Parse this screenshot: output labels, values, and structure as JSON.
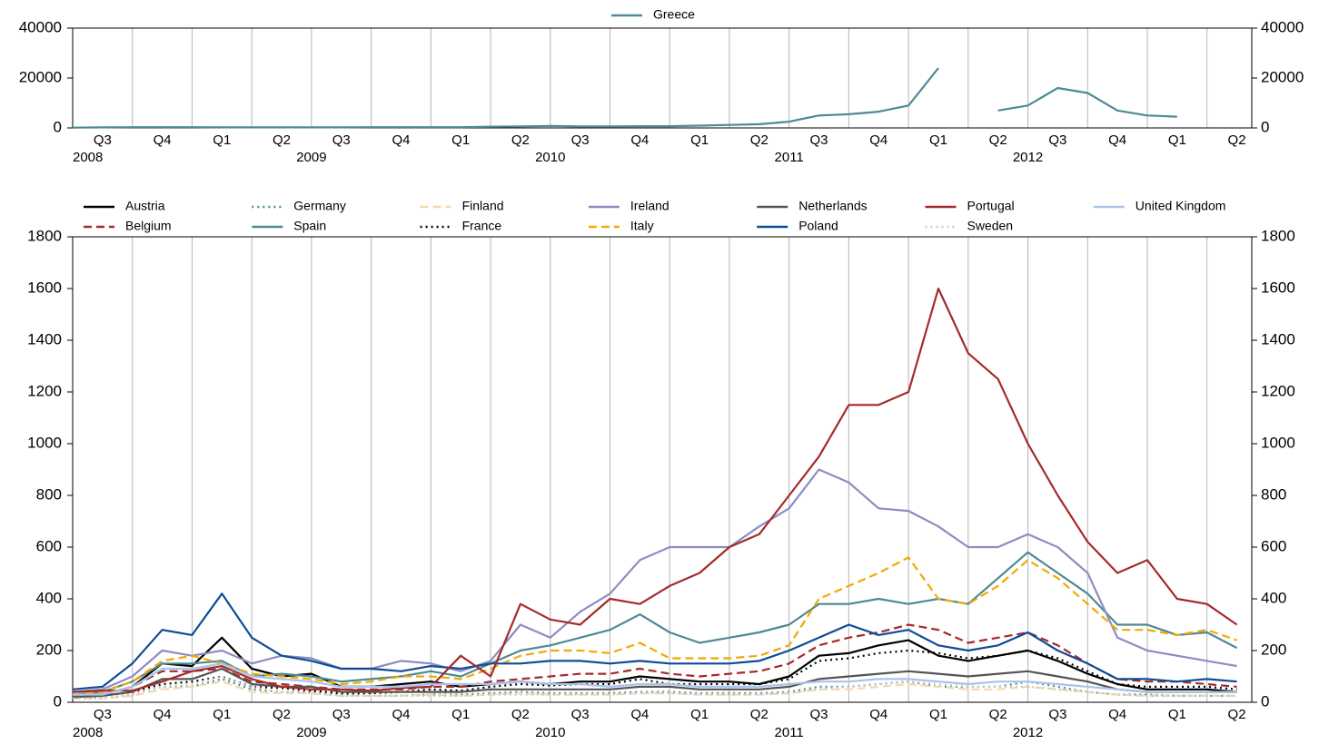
{
  "chart_data": [
    {
      "type": "line",
      "grid": true,
      "quarters": [
        "Q3",
        "Q4",
        "Q1",
        "Q2",
        "Q3",
        "Q4",
        "Q1",
        "Q2",
        "Q3",
        "Q4",
        "Q1",
        "Q2",
        "Q3",
        "Q4",
        "Q1",
        "Q2",
        "Q3",
        "Q4",
        "Q1",
        "Q2"
      ],
      "years": [
        "2008",
        "2009",
        "2010",
        "2011",
        "2012"
      ],
      "x": [
        0,
        0.5,
        1,
        1.5,
        2,
        2.5,
        3,
        3.5,
        4,
        4.5,
        5,
        5.5,
        6,
        6.5,
        7,
        7.5,
        8,
        8.5,
        9,
        9.5,
        10,
        10.5,
        11,
        11.5,
        12,
        12.5,
        13,
        13.5,
        14,
        14.5,
        15,
        15.5,
        16,
        16.5,
        17,
        17.5,
        18,
        18.5,
        19,
        19.5
      ],
      "xlim": [
        0,
        19.75
      ],
      "ylim": [
        0,
        40000
      ],
      "yticks": [
        0,
        20000,
        40000
      ],
      "series": [
        {
          "name": "Greece",
          "color": "#4d8a94",
          "dash": "solid",
          "values": [
            100,
            200,
            300,
            300,
            300,
            200,
            200,
            200,
            200,
            200,
            300,
            300,
            300,
            300,
            500,
            600,
            800,
            600,
            600,
            700,
            700,
            900,
            1200,
            1500,
            2500,
            5000,
            5500,
            6500,
            9000,
            24000,
            null,
            7000,
            9000,
            16000,
            14000,
            7000,
            5000,
            4500,
            null,
            1000
          ]
        }
      ]
    },
    {
      "type": "line",
      "grid": true,
      "quarters": [
        "Q3",
        "Q4",
        "Q1",
        "Q2",
        "Q3",
        "Q4",
        "Q1",
        "Q2",
        "Q3",
        "Q4",
        "Q1",
        "Q2",
        "Q3",
        "Q4",
        "Q1",
        "Q2",
        "Q3",
        "Q4",
        "Q1",
        "Q2"
      ],
      "years": [
        "2008",
        "2009",
        "2010",
        "2011",
        "2012"
      ],
      "x": [
        0,
        0.5,
        1,
        1.5,
        2,
        2.5,
        3,
        3.5,
        4,
        4.5,
        5,
        5.5,
        6,
        6.5,
        7,
        7.5,
        8,
        8.5,
        9,
        9.5,
        10,
        10.5,
        11,
        11.5,
        12,
        12.5,
        13,
        13.5,
        14,
        14.5,
        15,
        15.5,
        16,
        16.5,
        17,
        17.5,
        18,
        18.5,
        19,
        19.5
      ],
      "xlim": [
        0,
        19.75
      ],
      "ylim": [
        0,
        1800
      ],
      "yticks": [
        0,
        200,
        400,
        600,
        800,
        1000,
        1200,
        1400,
        1600,
        1800
      ],
      "series": [
        {
          "name": "Austria",
          "color": "#000000",
          "dash": "solid",
          "values": [
            30,
            30,
            60,
            150,
            140,
            250,
            130,
            100,
            110,
            60,
            60,
            70,
            80,
            60,
            70,
            80,
            70,
            80,
            80,
            100,
            90,
            80,
            80,
            70,
            100,
            180,
            190,
            220,
            240,
            180,
            160,
            180,
            200,
            160,
            110,
            70,
            50,
            50,
            50,
            40
          ]
        },
        {
          "name": "Belgium",
          "color": "#a52a2a",
          "dash": "dashed",
          "values": [
            30,
            30,
            60,
            120,
            120,
            130,
            80,
            70,
            60,
            50,
            50,
            50,
            60,
            60,
            80,
            90,
            100,
            110,
            110,
            130,
            110,
            100,
            110,
            120,
            150,
            220,
            250,
            270,
            300,
            280,
            230,
            250,
            270,
            220,
            150,
            90,
            80,
            80,
            70,
            60
          ]
        },
        {
          "name": "Germany",
          "color": "#4d8a94",
          "dash": "dotted",
          "values": [
            15,
            15,
            30,
            60,
            60,
            90,
            50,
            40,
            40,
            30,
            25,
            25,
            30,
            30,
            35,
            40,
            35,
            35,
            35,
            40,
            40,
            35,
            35,
            35,
            40,
            60,
            60,
            70,
            80,
            60,
            60,
            60,
            80,
            60,
            40,
            30,
            30,
            25,
            25,
            25
          ]
        },
        {
          "name": "Spain",
          "color": "#4d8a94",
          "dash": "solid",
          "values": [
            30,
            40,
            80,
            150,
            150,
            160,
            100,
            110,
            100,
            80,
            90,
            100,
            120,
            100,
            150,
            200,
            220,
            250,
            280,
            340,
            270,
            230,
            250,
            270,
            300,
            380,
            380,
            400,
            380,
            400,
            380,
            480,
            580,
            500,
            420,
            300,
            300,
            260,
            270,
            210
          ]
        },
        {
          "name": "Finland",
          "color": "#f5d9a8",
          "dash": "dashed",
          "values": [
            15,
            15,
            25,
            50,
            60,
            80,
            40,
            35,
            35,
            25,
            25,
            25,
            30,
            25,
            30,
            35,
            30,
            30,
            30,
            35,
            35,
            30,
            30,
            30,
            35,
            50,
            50,
            60,
            70,
            60,
            50,
            50,
            60,
            50,
            40,
            30,
            25,
            25,
            25,
            25
          ]
        },
        {
          "name": "France",
          "color": "#000000",
          "dash": "dotted",
          "values": [
            20,
            25,
            40,
            70,
            80,
            100,
            60,
            55,
            45,
            35,
            35,
            40,
            50,
            45,
            60,
            70,
            65,
            70,
            70,
            90,
            70,
            70,
            70,
            70,
            90,
            160,
            170,
            190,
            200,
            190,
            170,
            180,
            200,
            170,
            120,
            70,
            60,
            60,
            60,
            50
          ]
        },
        {
          "name": "Ireland",
          "color": "#8c8cc4",
          "dash": "solid",
          "values": [
            40,
            50,
            100,
            200,
            180,
            200,
            150,
            180,
            170,
            130,
            130,
            160,
            150,
            120,
            160,
            300,
            250,
            350,
            420,
            550,
            600,
            600,
            600,
            680,
            750,
            900,
            850,
            750,
            740,
            680,
            600,
            600,
            650,
            600,
            500,
            250,
            200,
            180,
            160,
            140
          ]
        },
        {
          "name": "Italy",
          "color": "#f2a900",
          "dash": "dashed",
          "values": [
            30,
            40,
            80,
            160,
            180,
            150,
            110,
            100,
            90,
            70,
            80,
            100,
            100,
            90,
            130,
            180,
            200,
            200,
            190,
            230,
            170,
            170,
            170,
            180,
            220,
            400,
            450,
            500,
            560,
            400,
            380,
            450,
            550,
            480,
            380,
            280,
            280,
            260,
            280,
            240
          ]
        },
        {
          "name": "Netherlands",
          "color": "#555555",
          "dash": "solid",
          "values": [
            20,
            25,
            40,
            90,
            90,
            130,
            70,
            60,
            60,
            40,
            40,
            40,
            40,
            40,
            50,
            50,
            50,
            50,
            50,
            60,
            60,
            50,
            50,
            50,
            60,
            90,
            100,
            110,
            120,
            110,
            100,
            110,
            120,
            100,
            80,
            50,
            40,
            40,
            40,
            40
          ]
        },
        {
          "name": "Poland",
          "color": "#0d4c96",
          "dash": "solid",
          "values": [
            50,
            60,
            150,
            280,
            260,
            420,
            250,
            180,
            160,
            130,
            130,
            120,
            140,
            130,
            150,
            150,
            160,
            160,
            150,
            160,
            150,
            150,
            150,
            160,
            200,
            250,
            300,
            260,
            280,
            220,
            200,
            220,
            270,
            200,
            150,
            90,
            90,
            80,
            90,
            80
          ]
        },
        {
          "name": "Portugal",
          "color": "#a52a2a",
          "dash": "solid",
          "values": [
            40,
            45,
            45,
            80,
            120,
            140,
            90,
            60,
            50,
            50,
            45,
            55,
            60,
            180,
            100,
            380,
            320,
            300,
            400,
            380,
            450,
            500,
            600,
            650,
            800,
            950,
            1150,
            1150,
            1200,
            1600,
            1350,
            1250,
            1000,
            800,
            620,
            500,
            550,
            400,
            380,
            300
          ]
        },
        {
          "name": "Sweden",
          "color": "#c8c8c8",
          "dash": "dotted",
          "values": [
            15,
            15,
            30,
            60,
            70,
            100,
            60,
            40,
            35,
            25,
            25,
            25,
            25,
            25,
            30,
            30,
            30,
            30,
            30,
            35,
            35,
            30,
            30,
            30,
            35,
            50,
            60,
            70,
            80,
            70,
            60,
            60,
            60,
            50,
            40,
            30,
            25,
            25,
            25,
            25
          ]
        },
        {
          "name": "United Kingdom",
          "color": "#a9c4ea",
          "dash": "solid",
          "values": [
            30,
            30,
            60,
            130,
            130,
            150,
            100,
            90,
            80,
            60,
            60,
            60,
            70,
            70,
            70,
            80,
            70,
            70,
            60,
            70,
            70,
            60,
            60,
            60,
            70,
            80,
            80,
            90,
            90,
            80,
            70,
            80,
            80,
            70,
            60,
            50,
            40,
            40,
            40,
            40
          ]
        }
      ]
    }
  ]
}
